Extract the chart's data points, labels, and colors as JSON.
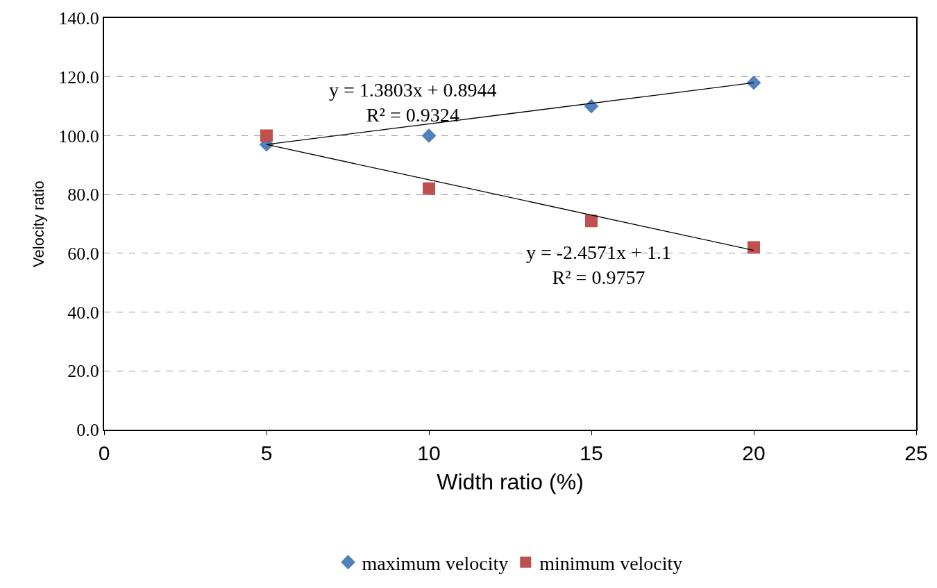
{
  "chart_data": {
    "type": "scatter",
    "xlabel": "Width ratio (%)",
    "ylabel": "Velocity ratio",
    "xlim": [
      0,
      25
    ],
    "xticks": [
      0,
      5,
      10,
      15,
      20,
      25
    ],
    "ylim": [
      0,
      140
    ],
    "yticks": [
      {
        "value": 0,
        "label": "0.0"
      },
      {
        "value": 20,
        "label": "20.0"
      },
      {
        "value": 40,
        "label": "40.0"
      },
      {
        "value": 60,
        "label": "60.0"
      },
      {
        "value": 80,
        "label": "80.0"
      },
      {
        "value": 100,
        "label": "100.0"
      },
      {
        "value": 120,
        "label": "120.0"
      },
      {
        "value": 140,
        "label": "140.0"
      }
    ],
    "grid": "y",
    "legend": "bottom",
    "series": [
      {
        "name": "maximum velocity",
        "color": "#4f81bd",
        "marker": "diamond",
        "x": [
          5,
          10,
          15,
          20
        ],
        "values": [
          97,
          100,
          110,
          118
        ]
      },
      {
        "name": "minimum velocity",
        "color": "#c0504d",
        "marker": "square",
        "x": [
          5,
          10,
          15,
          20
        ],
        "values": [
          100,
          82,
          71,
          62
        ]
      },
      {
        "type": "line",
        "color": "#000000",
        "marker": "none",
        "x": [
          5,
          20
        ],
        "values": [
          97,
          118
        ]
      },
      {
        "type": "line",
        "color": "#000000",
        "marker": "none",
        "x": [
          5,
          20
        ],
        "values": [
          97,
          61
        ]
      }
    ],
    "annotations": [
      "y = 1.3803x + 0.8944\nR² = 0.9324",
      "y = -2.4571x + 1.1\nR² = 0.9757"
    ]
  }
}
